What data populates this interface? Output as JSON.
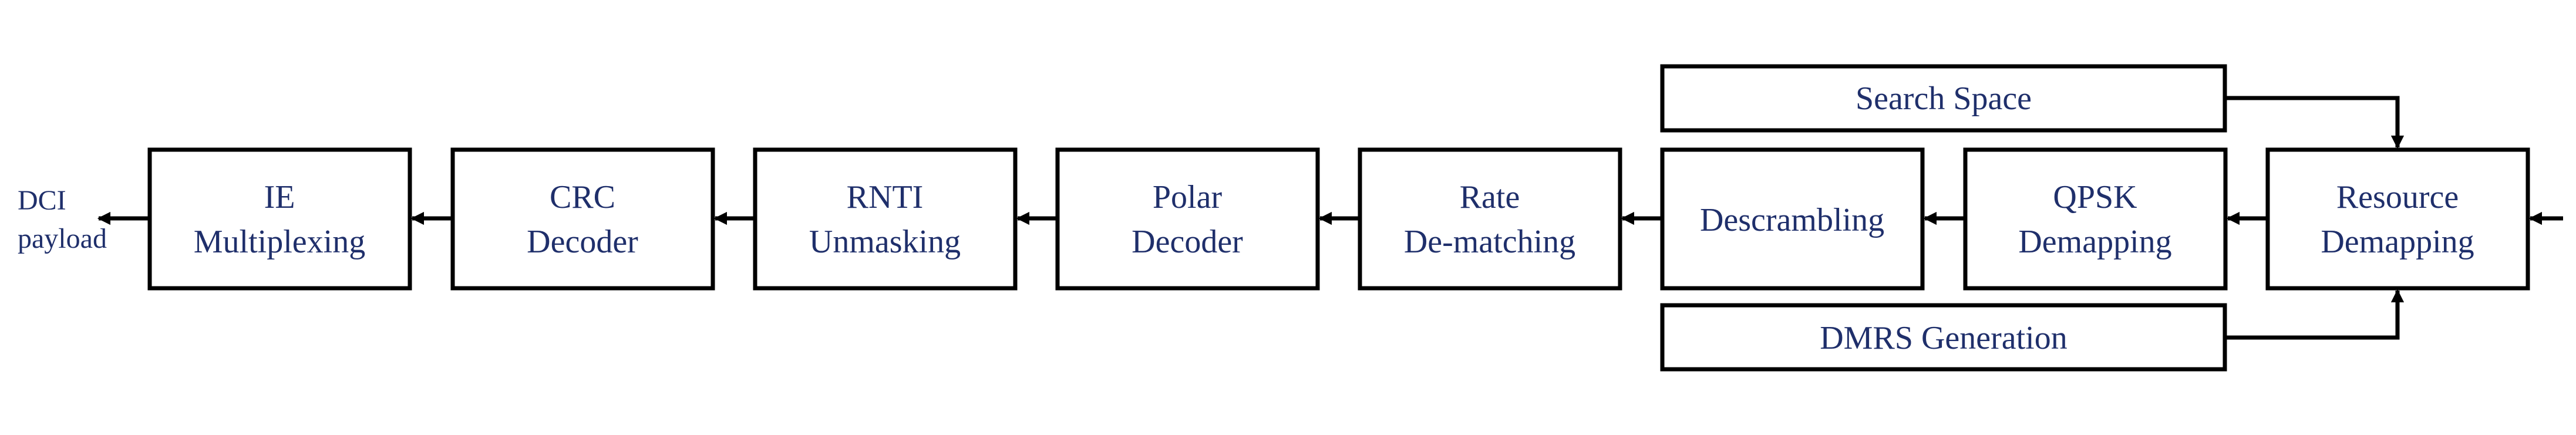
{
  "diagram": {
    "output": {
      "line1": "DCI",
      "line2": "payload"
    },
    "blocks": {
      "ie_multiplexing": {
        "line1": "IE",
        "line2": "Multiplexing"
      },
      "crc_decoder": {
        "line1": "CRC",
        "line2": "Decoder"
      },
      "rnti_unmasking": {
        "line1": "RNTI",
        "line2": "Unmasking"
      },
      "polar_decoder": {
        "line1": "Polar",
        "line2": "Decoder"
      },
      "rate_dematching": {
        "line1": "Rate",
        "line2": "De-matching"
      },
      "descrambling": {
        "line1": "Descrambling"
      },
      "qpsk_demapping": {
        "line1": "QPSK",
        "line2": "Demapping"
      },
      "resource_demapping": {
        "line1": "Resource",
        "line2": "Demapping"
      },
      "search_space": {
        "line1": "Search Space"
      },
      "dmrs_generation": {
        "line1": "DMRS Generation"
      }
    }
  }
}
